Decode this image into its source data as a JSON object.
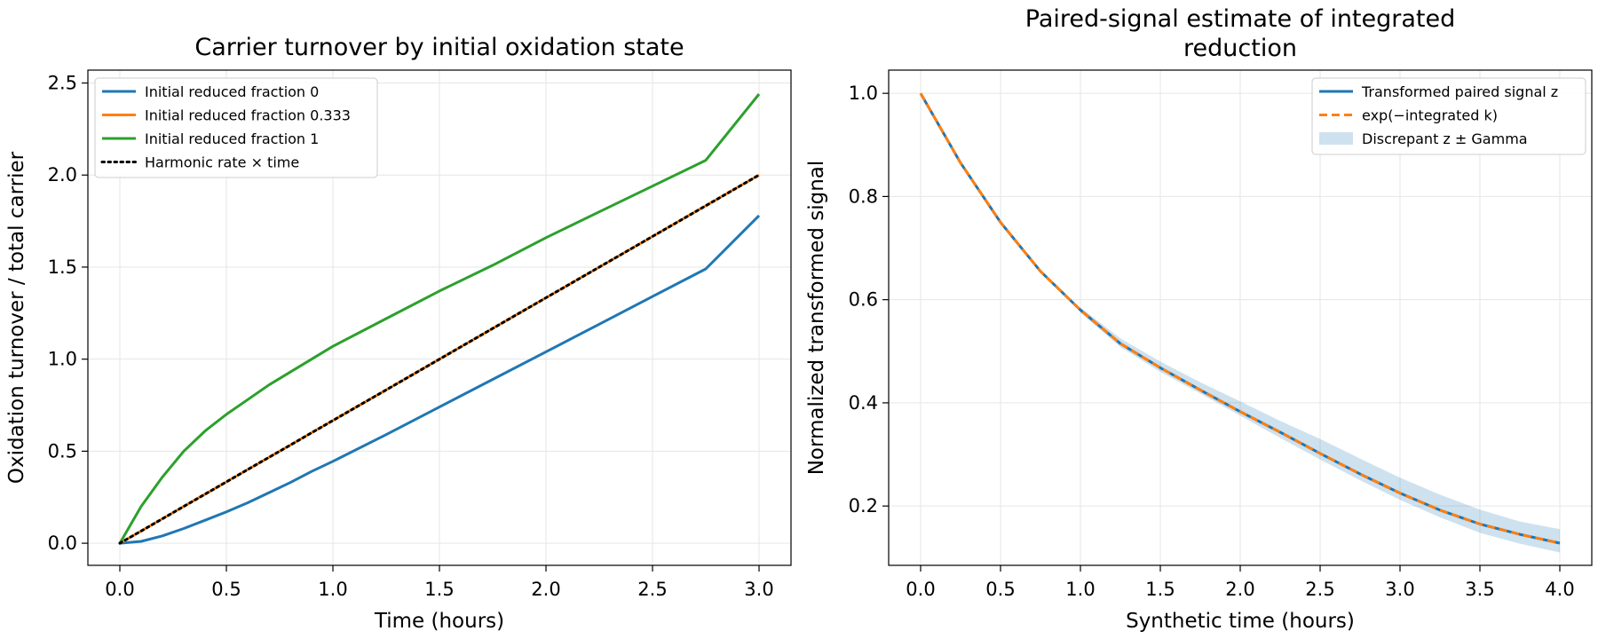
{
  "chart_data": [
    {
      "type": "line",
      "title": "Carrier turnover by initial oxidation state",
      "xlabel": "Time (hours)",
      "ylabel": "Oxidation turnover / total carrier",
      "xlim": [
        -0.15,
        3.15
      ],
      "ylim": [
        -0.12,
        2.57
      ],
      "xticks": [
        0.0,
        0.5,
        1.0,
        1.5,
        2.0,
        2.5,
        3.0
      ],
      "xtick_labels": [
        "0.0",
        "0.5",
        "1.0",
        "1.5",
        "2.0",
        "2.5",
        "3.0"
      ],
      "yticks": [
        0.0,
        0.5,
        1.0,
        1.5,
        2.0,
        2.5
      ],
      "ytick_labels": [
        "0.0",
        "0.5",
        "1.0",
        "1.5",
        "2.0",
        "2.5"
      ],
      "grid": true,
      "legend_position": "top-left",
      "x": [
        0.0,
        0.1,
        0.2,
        0.3,
        0.4,
        0.5,
        0.6,
        0.7,
        0.8,
        0.9,
        1.0,
        1.25,
        1.5,
        1.75,
        2.0,
        2.25,
        2.5,
        2.75,
        3.0
      ],
      "series": [
        {
          "name": "Initial reduced fraction 0",
          "color": "#1f77b4",
          "style": "solid",
          "values": [
            0.0,
            0.01,
            0.04,
            0.08,
            0.125,
            0.17,
            0.22,
            0.275,
            0.33,
            0.39,
            0.445,
            0.59,
            0.74,
            0.89,
            1.04,
            1.19,
            1.34,
            1.49,
            1.78
          ]
        },
        {
          "name": "Initial reduced fraction 0.333",
          "color": "#ff7f0e",
          "style": "solid",
          "values": [
            0.0,
            0.0667,
            0.1333,
            0.2,
            0.2667,
            0.3333,
            0.4,
            0.4667,
            0.5333,
            0.6,
            0.6667,
            0.8333,
            1.0,
            1.1667,
            1.3333,
            1.5,
            1.6667,
            1.8333,
            2.0
          ]
        },
        {
          "name": "Initial reduced fraction 1",
          "color": "#2ca02c",
          "style": "solid",
          "values": [
            0.0,
            0.2,
            0.36,
            0.5,
            0.61,
            0.7,
            0.78,
            0.86,
            0.93,
            1.0,
            1.07,
            1.22,
            1.37,
            1.51,
            1.66,
            1.8,
            1.94,
            2.08,
            2.44
          ]
        },
        {
          "name": "Harmonic rate × time",
          "color": "#000000",
          "style": "dotted",
          "values": [
            0.0,
            0.0667,
            0.1333,
            0.2,
            0.2667,
            0.3333,
            0.4,
            0.4667,
            0.5333,
            0.6,
            0.6667,
            0.8333,
            1.0,
            1.1667,
            1.3333,
            1.5,
            1.6667,
            1.8333,
            2.0
          ]
        }
      ]
    },
    {
      "type": "line",
      "title": "Paired-signal estimate of integrated reduction",
      "title_lines": [
        "Paired-signal estimate of integrated",
        "reduction"
      ],
      "xlabel": "Synthetic time (hours)",
      "ylabel": "Normalized transformed signal",
      "xlim": [
        -0.2,
        4.2
      ],
      "ylim": [
        0.085,
        1.045
      ],
      "xticks": [
        0.0,
        0.5,
        1.0,
        1.5,
        2.0,
        2.5,
        3.0,
        3.5,
        4.0
      ],
      "xtick_labels": [
        "0.0",
        "0.5",
        "1.0",
        "1.5",
        "2.0",
        "2.5",
        "3.0",
        "3.5",
        "4.0"
      ],
      "yticks": [
        0.2,
        0.4,
        0.6,
        0.8,
        1.0
      ],
      "ytick_labels": [
        "0.2",
        "0.4",
        "0.6",
        "0.8",
        "1.0"
      ],
      "grid": true,
      "legend_position": "top-right",
      "x": [
        0.0,
        0.25,
        0.5,
        0.75,
        1.0,
        1.25,
        1.5,
        1.75,
        2.0,
        2.25,
        2.5,
        2.75,
        3.0,
        3.25,
        3.5,
        3.75,
        4.0
      ],
      "series": [
        {
          "name": "Transformed paired signal z",
          "color": "#1f77b4",
          "style": "solid",
          "values": [
            1.0,
            0.865,
            0.75,
            0.655,
            0.58,
            0.515,
            0.468,
            0.425,
            0.383,
            0.343,
            0.302,
            0.262,
            0.225,
            0.192,
            0.165,
            0.145,
            0.128
          ]
        },
        {
          "name": "exp(−integrated k)",
          "color": "#ff7f0e",
          "style": "dashed",
          "values": [
            1.0,
            0.865,
            0.75,
            0.655,
            0.58,
            0.515,
            0.468,
            0.425,
            0.383,
            0.343,
            0.302,
            0.262,
            0.225,
            0.192,
            0.165,
            0.145,
            0.128
          ]
        }
      ],
      "band": {
        "name": "Discrepant z ± Gamma",
        "color": "#1f77b4",
        "opacity": 0.22,
        "x": [
          1.0,
          1.25,
          1.5,
          1.75,
          2.0,
          2.25,
          2.5,
          2.75,
          3.0,
          3.25,
          3.5,
          3.75,
          4.0
        ],
        "lower": [
          0.575,
          0.508,
          0.46,
          0.418,
          0.375,
          0.332,
          0.29,
          0.25,
          0.212,
          0.178,
          0.148,
          0.127,
          0.11
        ],
        "upper": [
          0.585,
          0.525,
          0.48,
          0.44,
          0.403,
          0.365,
          0.33,
          0.292,
          0.255,
          0.222,
          0.193,
          0.17,
          0.155
        ]
      }
    }
  ]
}
